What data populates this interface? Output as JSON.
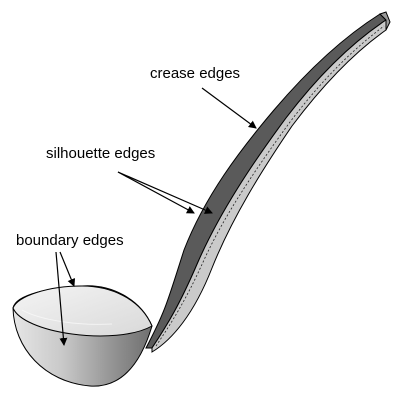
{
  "labels": {
    "crease": "crease edges",
    "silhouette": "silhouette edges",
    "boundary": "boundary edges"
  },
  "colors": {
    "outline": "#000000",
    "handle_dark": "#555555",
    "handle_light": "#c8c8c8",
    "bowl_rim": "#ececec",
    "bowl_body": "#9a9a9a",
    "background": "#ffffff"
  }
}
